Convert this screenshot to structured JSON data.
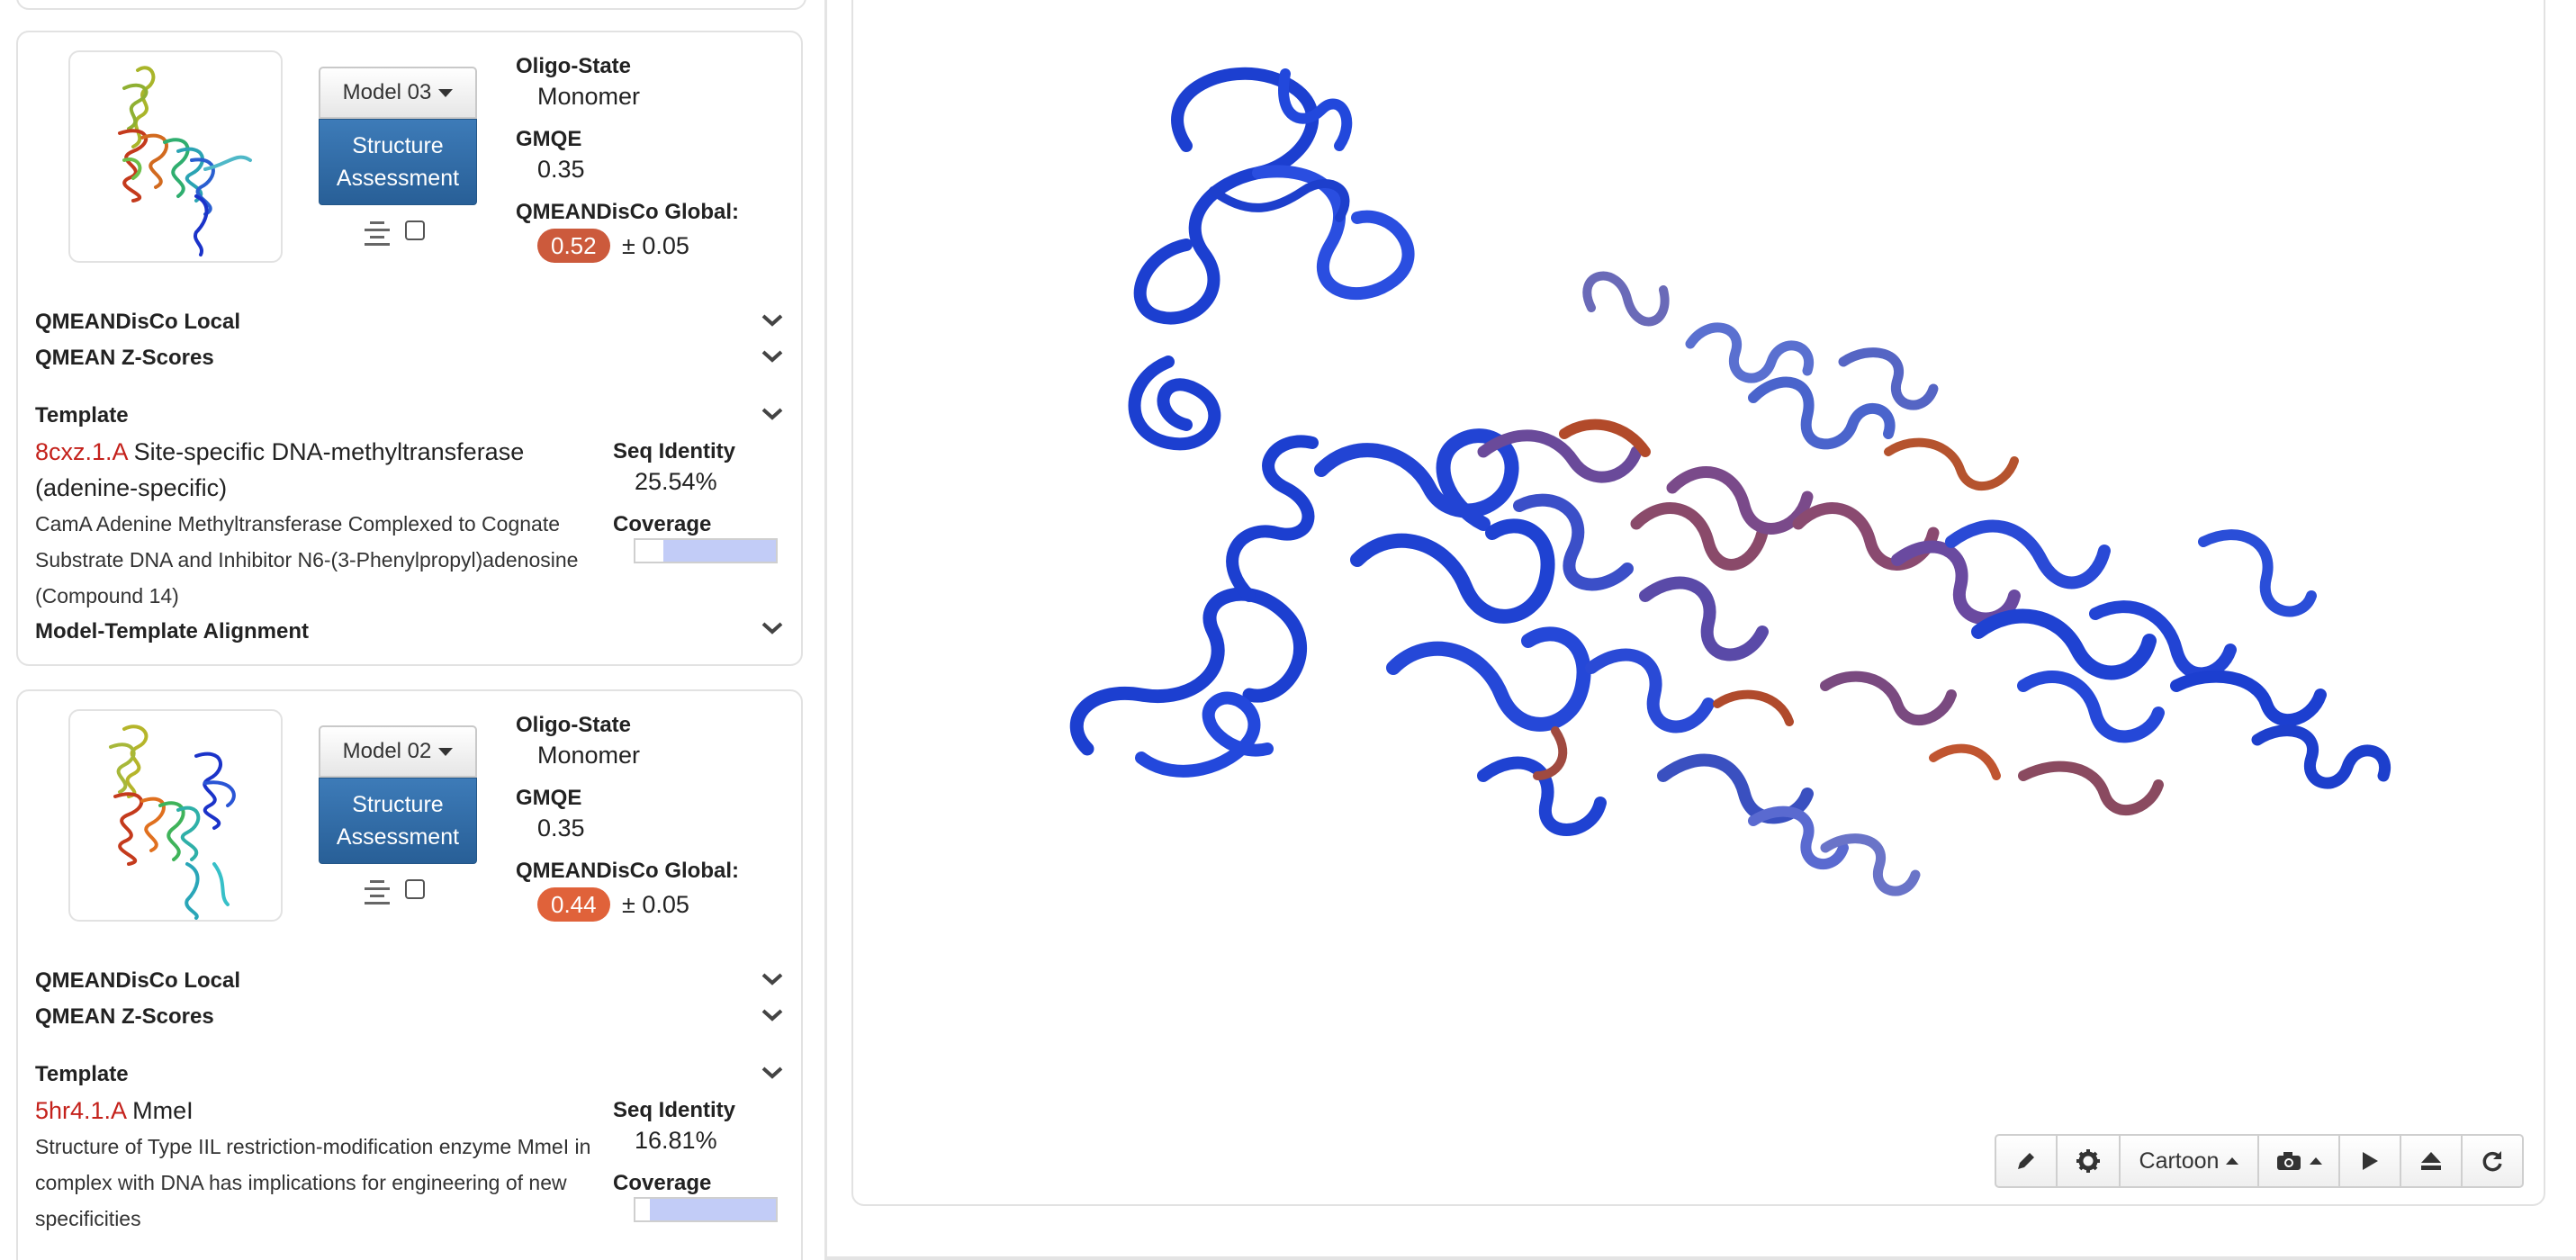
{
  "cards": [
    {
      "model_label": "Model 03",
      "assessment_line1": "Structure",
      "assessment_line2": "Assessment",
      "oligo_label": "Oligo-State",
      "oligo_value": "Monomer",
      "gmqe_label": "GMQE",
      "gmqe_value": "0.35",
      "qmean_label": "QMEANDisCo Global:",
      "qmean_value": "0.52",
      "qmean_error": "± 0.05",
      "qmean_color": "#cc5a3c",
      "local_label": "QMEANDisCo Local",
      "zscore_label": "QMEAN Z-Scores",
      "template_label": "Template",
      "template_id": "8cxz.1.A",
      "template_name": "Site-specific DNA-methyltransferase",
      "template_name_cont": "(adenine-specific)",
      "template_desc": "CamA Adenine Methyltransferase Complexed to Cognate Substrate DNA and Inhibitor N6-(3-Phenylpropyl)adenosine (Compound 14)",
      "seq_identity_label": "Seq Identity",
      "seq_identity_value": "25.54%",
      "coverage_label": "Coverage",
      "coverage_start": 0.2,
      "coverage_end": 1.0,
      "alignment_label": "Model-Template Alignment"
    },
    {
      "model_label": "Model 02",
      "assessment_line1": "Structure",
      "assessment_line2": "Assessment",
      "oligo_label": "Oligo-State",
      "oligo_value": "Monomer",
      "gmqe_label": "GMQE",
      "gmqe_value": "0.35",
      "qmean_label": "QMEANDisCo Global:",
      "qmean_value": "0.44",
      "qmean_error": "± 0.05",
      "qmean_color": "#e0623a",
      "local_label": "QMEANDisCo Local",
      "zscore_label": "QMEAN Z-Scores",
      "template_label": "Template",
      "template_id": "5hr4.1.A",
      "template_name": "MmeI",
      "template_desc": "Structure of Type IIL restriction-modification enzyme MmeI in complex with DNA has implications for engineering of new specificities",
      "seq_identity_label": "Seq Identity",
      "seq_identity_value": "16.81%",
      "coverage_label": "Coverage",
      "coverage_start": 0.1,
      "coverage_end": 1.0
    }
  ],
  "viewer": {
    "style_label": "Cartoon",
    "icons": [
      "pencil-icon",
      "gear-icon",
      "camera-icon",
      "play-icon",
      "eject-icon",
      "refresh-icon"
    ]
  }
}
